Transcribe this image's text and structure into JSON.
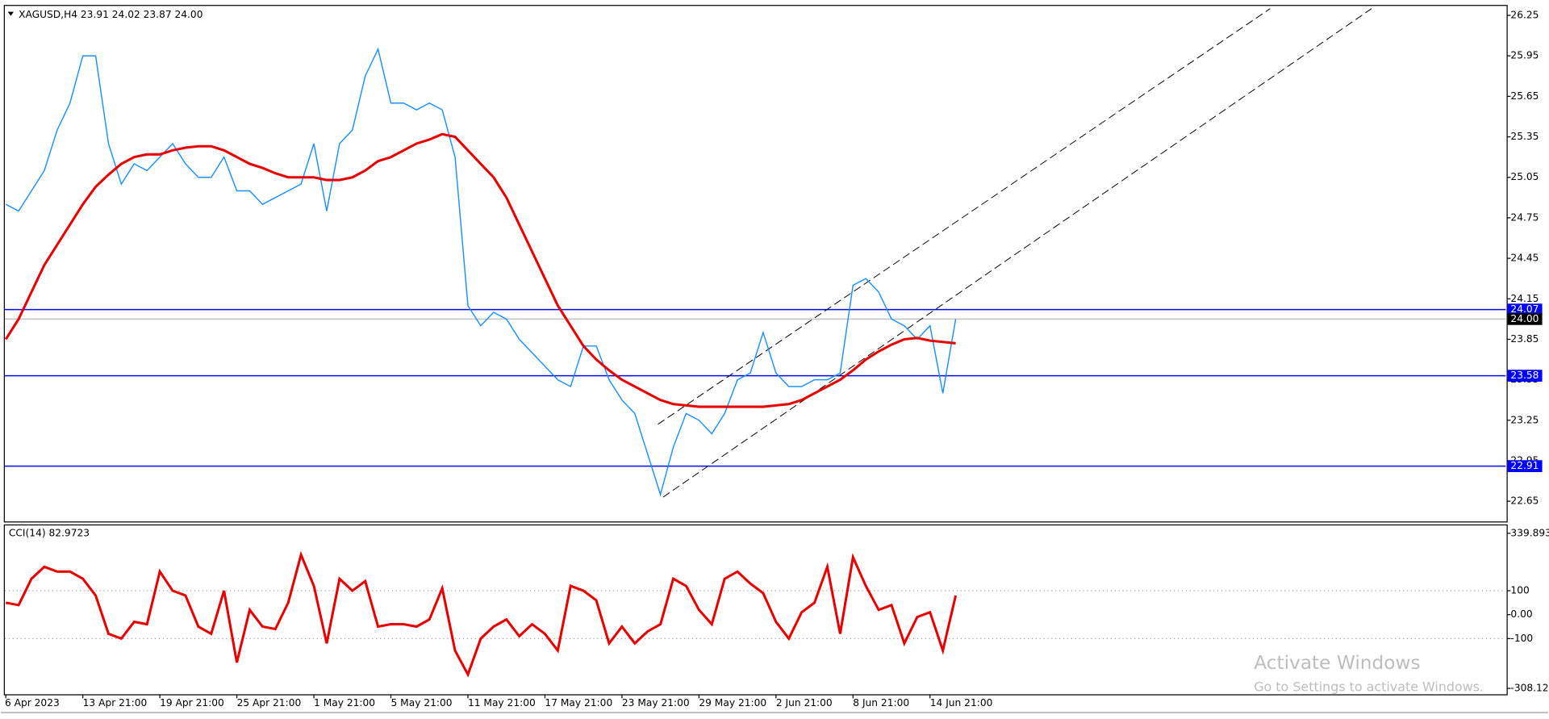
{
  "chart_data": [
    {
      "type": "line",
      "title": "XAGUSD,H4  23.91 24.02 23.87 24.00",
      "categories": [
        "6 Apr 2023",
        null,
        null,
        null,
        null,
        null,
        "13 Apr 21:00",
        null,
        null,
        null,
        null,
        null,
        "19 Apr 21:00",
        null,
        null,
        null,
        null,
        null,
        "25 Apr 21:00",
        null,
        null,
        null,
        null,
        null,
        "1 May 21:00",
        null,
        null,
        null,
        null,
        null,
        "5 May 21:00",
        null,
        null,
        null,
        null,
        null,
        "11 May 21:00",
        null,
        null,
        null,
        null,
        null,
        "17 May 21:00",
        null,
        null,
        null,
        null,
        null,
        "23 May 21:00",
        null,
        null,
        null,
        null,
        null,
        "29 May 21:00",
        null,
        null,
        null,
        null,
        null,
        "2 Jun 21:00",
        null,
        null,
        null,
        null,
        null,
        "8 Jun 21:00",
        null,
        null,
        null,
        null,
        null,
        "14 Jun 21:00",
        null,
        null
      ],
      "series": [
        {
          "color": "#1e90ff",
          "values": [
            24.85,
            24.8,
            24.95,
            25.1,
            25.4,
            25.6,
            25.95,
            25.95,
            25.3,
            25.0,
            25.15,
            25.1,
            25.2,
            25.3,
            25.15,
            25.05,
            25.05,
            25.2,
            24.95,
            24.95,
            24.85,
            24.9,
            24.95,
            25.0,
            25.3,
            24.8,
            25.3,
            25.4,
            25.8,
            26.0,
            25.6,
            25.6,
            25.55,
            25.6,
            25.55,
            25.2,
            24.1,
            23.95,
            24.05,
            24.0,
            23.85,
            23.75,
            23.65,
            23.55,
            23.5,
            23.8,
            23.8,
            23.55,
            23.4,
            23.3,
            23.0,
            22.7,
            23.05,
            23.3,
            23.25,
            23.15,
            23.3,
            23.55,
            23.6,
            23.9,
            23.6,
            23.5,
            23.5,
            23.55,
            23.55,
            23.6,
            24.25,
            24.3,
            24.2,
            24.0,
            23.95,
            23.85,
            23.95,
            23.45,
            24.0
          ]
        },
        {
          "color": "#e60000",
          "values": [
            23.85,
            24.0,
            24.2,
            24.4,
            24.55,
            24.7,
            24.85,
            24.98,
            25.07,
            25.15,
            25.2,
            25.22,
            25.22,
            25.25,
            25.27,
            25.28,
            25.28,
            25.25,
            25.2,
            25.15,
            25.12,
            25.08,
            25.05,
            25.05,
            25.05,
            25.03,
            25.03,
            25.05,
            25.1,
            25.17,
            25.2,
            25.25,
            25.3,
            25.33,
            25.37,
            25.35,
            25.25,
            25.15,
            25.05,
            24.9,
            24.7,
            24.5,
            24.3,
            24.1,
            23.95,
            23.8,
            23.7,
            23.62,
            23.55,
            23.5,
            23.45,
            23.4,
            23.37,
            23.36,
            23.35,
            23.35,
            23.35,
            23.35,
            23.35,
            23.35,
            23.36,
            23.37,
            23.4,
            23.45,
            23.5,
            23.55,
            23.62,
            23.7,
            23.76,
            23.81,
            23.85,
            23.86,
            23.84,
            23.83,
            23.82
          ]
        }
      ],
      "xlim": [
        0,
        116.9
      ],
      "ylim": [
        22.5,
        26.32
      ],
      "yticks": [
        26.25,
        25.95,
        25.65,
        25.35,
        25.05,
        24.75,
        24.45,
        24.15,
        23.85,
        23.55,
        23.25,
        22.95,
        22.65
      ],
      "hlines": [
        {
          "value": 24.07,
          "color": "#0000ff",
          "box_color": "#0000ff"
        },
        {
          "value": 23.58,
          "color": "#0000ff",
          "box_color": "#0000ff"
        },
        {
          "value": 22.91,
          "color": "#0000ff",
          "box_color": "#0000ff"
        },
        {
          "value": 24,
          "label": "24.00",
          "color": "#c0c0c0",
          "box_color": "#000000"
        }
      ],
      "trendlines": [
        {
          "x": [
            50.8,
            98.5
          ],
          "y": [
            23.22,
            26.3
          ]
        },
        {
          "x": [
            51.2,
            106.4
          ],
          "y": [
            22.68,
            26.3
          ]
        }
      ]
    },
    {
      "type": "line",
      "title": "CCI(14) 82.9723",
      "series": [
        {
          "color": "#e60000",
          "values": [
            50,
            40,
            150,
            200,
            180,
            180,
            150,
            80,
            -80,
            -100,
            -30,
            -40,
            180,
            100,
            80,
            -50,
            -80,
            100,
            -200,
            20,
            -50,
            -60,
            50,
            250,
            120,
            -120,
            150,
            100,
            140,
            -50,
            -40,
            -40,
            -50,
            -20,
            110,
            -150,
            -250,
            -100,
            -50,
            -20,
            -90,
            -40,
            -80,
            -150,
            120,
            100,
            60,
            -120,
            -50,
            -120,
            -70,
            -40,
            150,
            120,
            20,
            -40,
            150,
            180,
            130,
            90,
            -30,
            -100,
            10,
            50,
            200,
            -80,
            240,
            120,
            20,
            40,
            -120,
            -10,
            10,
            -150,
            80
          ]
        }
      ],
      "ylim": [
        -308.127,
        339.893
      ],
      "yticks": [
        339.893,
        100,
        {
          "value": 0,
          "label": "0.00"
        },
        -100,
        -308.127
      ],
      "levels": [
        100,
        -100
      ]
    }
  ],
  "watermark": {
    "title": "Activate Windows",
    "text": "Go to Settings to activate Windows."
  }
}
